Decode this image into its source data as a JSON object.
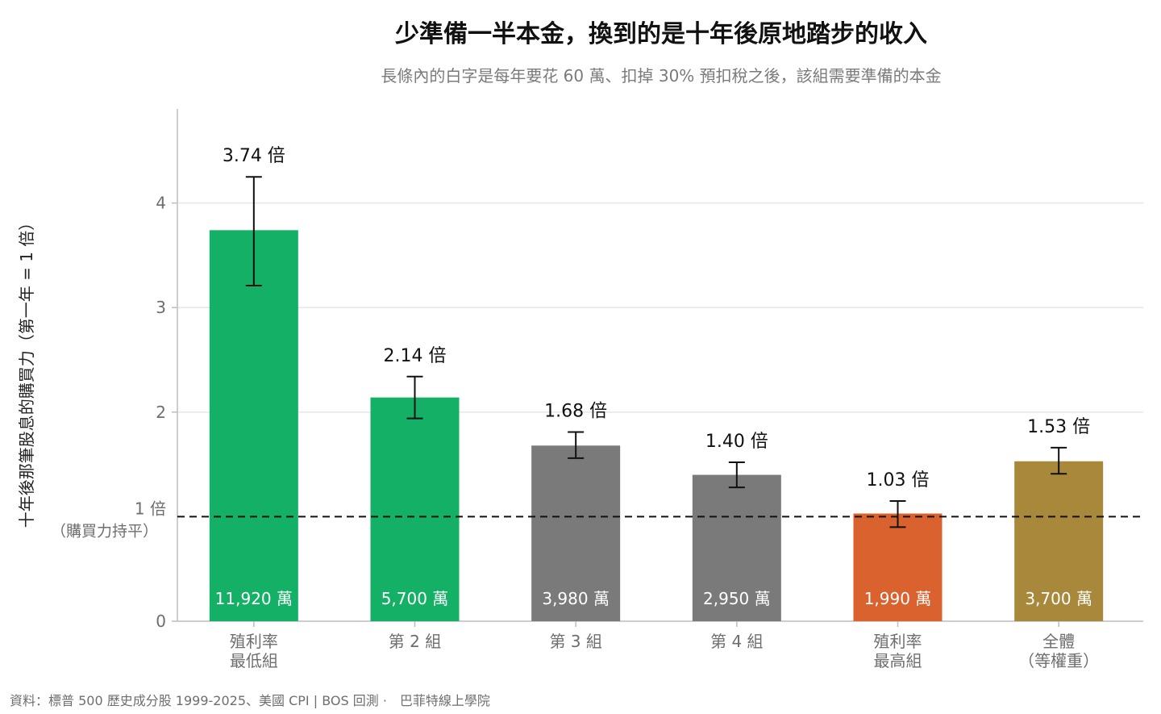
{
  "chart_data": {
    "type": "bar",
    "title": "少準備一半本金，換到的是十年後原地踏步的收入",
    "subtitle": "長條內的白字是每年要花 60 萬、扣掉 30% 預扣稅之後，該組需要準備的本金",
    "ylabel": "十年後那筆股息的購買力（第一年 = 1 倍）",
    "ylim": [
      0,
      4.9
    ],
    "yticks": [
      0,
      2,
      3,
      4
    ],
    "grid": true,
    "reference": {
      "value": 1,
      "label": "1 倍",
      "sublabel": "（購買力持平）"
    },
    "categories": [
      [
        "殖利率",
        "最低組"
      ],
      [
        "第 2 組"
      ],
      [
        "第 3 組"
      ],
      [
        "第 4 組"
      ],
      [
        "殖利率",
        "最高組"
      ],
      [
        "全體",
        "（等權重）"
      ]
    ],
    "values": [
      3.74,
      2.14,
      1.68,
      1.4,
      1.03,
      1.53
    ],
    "error_low": [
      3.21,
      1.94,
      1.56,
      1.28,
      0.9,
      1.41
    ],
    "error_high": [
      4.25,
      2.34,
      1.81,
      1.52,
      1.15,
      1.66
    ],
    "value_labels": [
      "3.74 倍",
      "2.14 倍",
      "1.68 倍",
      "1.40 倍",
      "1.03 倍",
      "1.53 倍"
    ],
    "inner_labels": [
      "11,920 萬",
      "5,700 萬",
      "3,980 萬",
      "2,950 萬",
      "1,990 萬",
      "3,700 萬"
    ],
    "colors": [
      "#14b066",
      "#14b066",
      "#7a7a7a",
      "#7a7a7a",
      "#d9622e",
      "#a8883b"
    ],
    "source": "資料：標普 500 歷史成分股 1999-2025、美國 CPI | BOS 回測 ·　巴菲特線上學院"
  }
}
